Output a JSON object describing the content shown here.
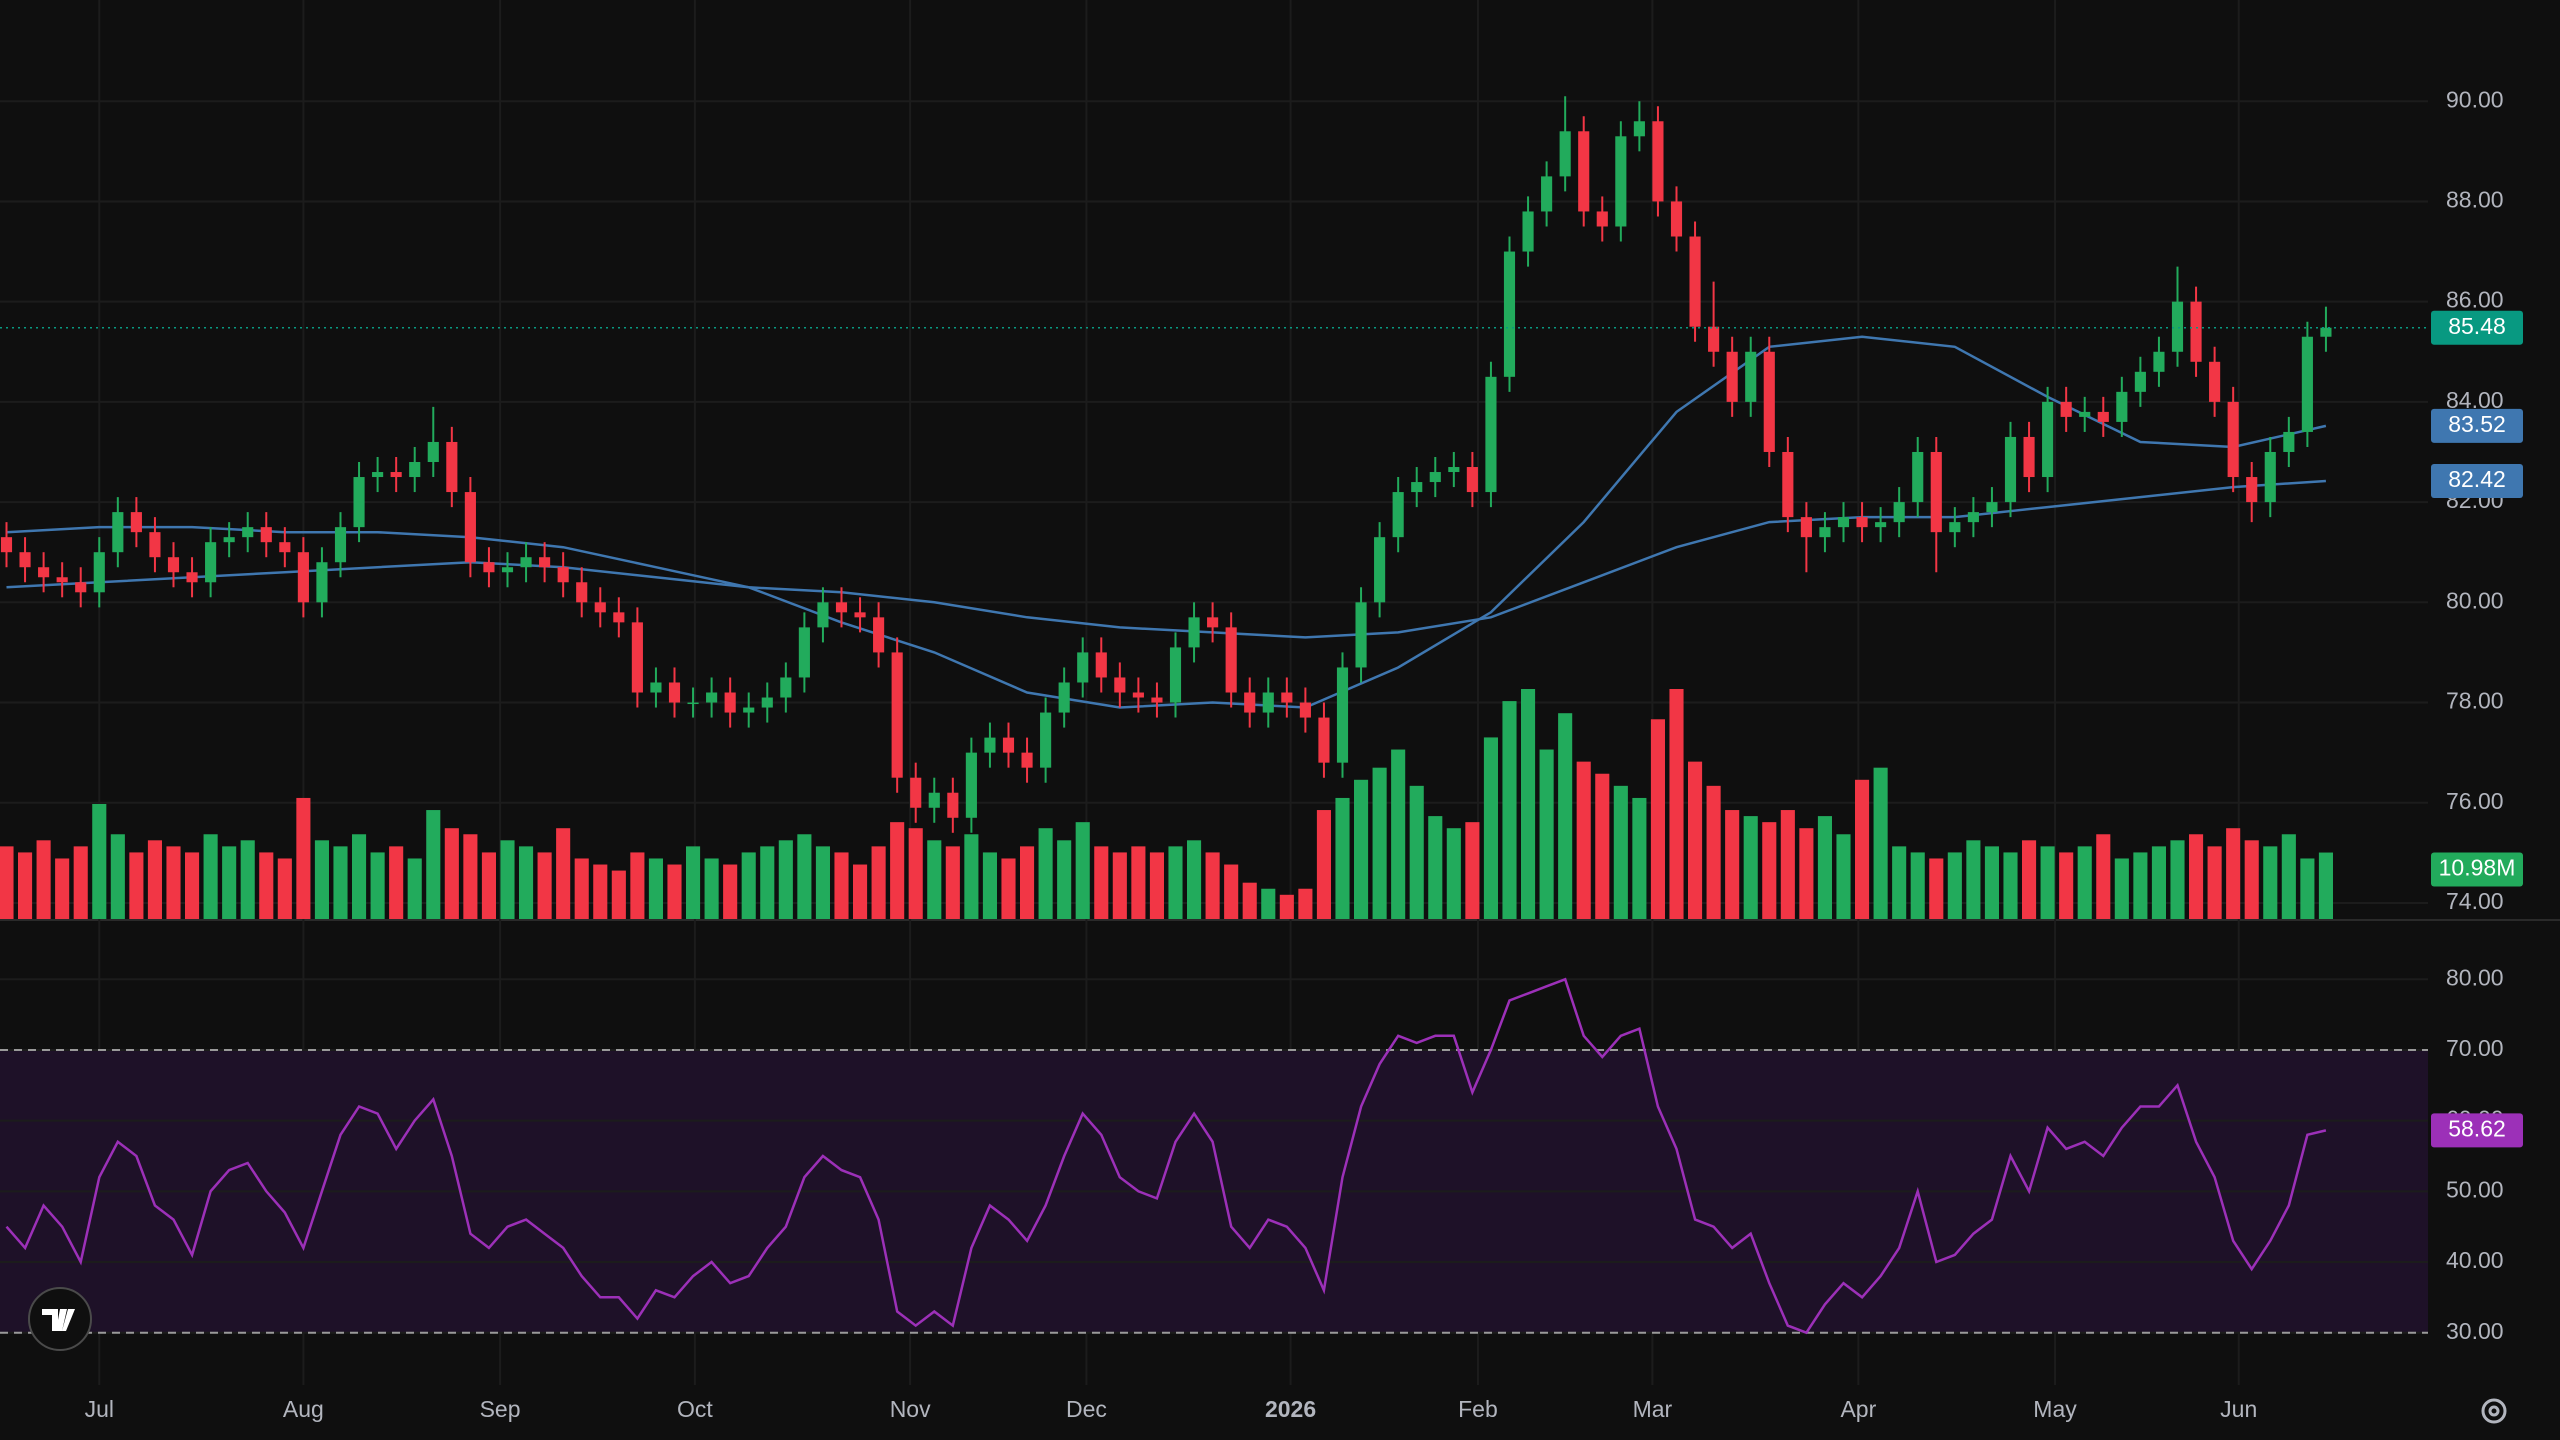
{
  "chart_data": [
    {
      "type": "candlestick",
      "xlim": [
        -0.35,
        130.5
      ],
      "xticks": [
        {
          "value": 5.0,
          "label": "Jul"
        },
        {
          "value": 16.0,
          "label": "Aug"
        },
        {
          "value": 26.6,
          "label": "Sep"
        },
        {
          "value": 37.1,
          "label": "Oct"
        },
        {
          "value": 48.7,
          "label": "Nov"
        },
        {
          "value": 58.2,
          "label": "Dec"
        },
        {
          "value": 69.2,
          "label": "2026"
        },
        {
          "value": 79.3,
          "label": "Feb"
        },
        {
          "value": 88.7,
          "label": "Mar"
        },
        {
          "value": 99.8,
          "label": "Apr"
        },
        {
          "value": 110.4,
          "label": "May"
        },
        {
          "value": 120.3,
          "label": "Jun"
        }
      ],
      "ylim": [
        73.68,
        92.02
      ],
      "yticks": [
        {
          "value": 74,
          "label": "74.00"
        },
        {
          "value": 76,
          "label": "76.00"
        },
        {
          "value": 78,
          "label": "78.00"
        },
        {
          "value": 80,
          "label": "80.00"
        },
        {
          "value": 82,
          "label": "82.00"
        },
        {
          "value": 84,
          "label": "84.00"
        },
        {
          "value": 86,
          "label": "86.00"
        },
        {
          "value": 88,
          "label": "88.00"
        },
        {
          "value": 90,
          "label": "90.00"
        }
      ],
      "grid": true,
      "up_color": "#22ab5c",
      "down_color": "#f23645",
      "last_price_color": "#089981",
      "open": [
        81.3,
        81.0,
        80.7,
        80.5,
        80.4,
        80.2,
        81.0,
        81.8,
        81.4,
        80.9,
        80.6,
        80.4,
        81.2,
        81.3,
        81.5,
        81.2,
        81.0,
        80.0,
        80.8,
        81.5,
        82.5,
        82.6,
        82.5,
        82.8,
        83.2,
        82.2,
        80.8,
        80.6,
        80.7,
        80.9,
        80.7,
        80.4,
        80.0,
        79.8,
        79.6,
        78.2,
        78.4,
        78.0,
        78.0,
        78.2,
        77.8,
        77.9,
        78.1,
        78.5,
        79.5,
        80.0,
        79.8,
        79.7,
        79.0,
        76.5,
        75.9,
        76.2,
        75.7,
        77.0,
        77.3,
        77.0,
        76.7,
        77.8,
        78.4,
        79.0,
        78.5,
        78.2,
        78.1,
        78.0,
        79.1,
        79.7,
        79.5,
        78.2,
        77.8,
        78.2,
        78.0,
        77.7,
        76.8,
        78.7,
        80.0,
        81.3,
        82.2,
        82.4,
        82.6,
        82.7,
        82.2,
        84.5,
        87.0,
        87.8,
        88.5,
        89.4,
        87.8,
        87.5,
        89.3,
        89.6,
        88.0,
        87.3,
        85.5,
        85.0,
        84.0,
        85.0,
        83.0,
        81.7,
        81.3,
        81.5,
        81.7,
        81.5,
        81.6,
        82.0,
        83.0,
        81.4,
        81.6,
        81.8,
        82.0,
        83.3,
        82.5,
        84.0,
        83.7,
        83.8,
        83.6,
        84.2,
        84.6,
        85.0,
        86.0,
        84.8,
        84.0,
        82.5,
        82.0,
        83.0,
        83.4,
        85.3
      ],
      "high": [
        81.6,
        81.3,
        81.0,
        80.8,
        80.7,
        81.3,
        82.1,
        82.1,
        81.7,
        81.2,
        80.9,
        81.5,
        81.6,
        81.8,
        81.8,
        81.5,
        81.3,
        81.1,
        81.8,
        82.8,
        82.9,
        82.9,
        83.1,
        83.9,
        83.5,
        82.5,
        81.1,
        81.0,
        81.2,
        81.2,
        81.0,
        80.7,
        80.3,
        80.1,
        79.9,
        78.7,
        78.7,
        78.3,
        78.5,
        78.5,
        78.2,
        78.4,
        78.8,
        79.8,
        80.3,
        80.3,
        80.1,
        80.0,
        79.3,
        76.8,
        76.5,
        76.5,
        77.3,
        77.6,
        77.6,
        77.3,
        78.1,
        78.7,
        79.3,
        79.3,
        78.8,
        78.5,
        78.4,
        79.4,
        80.0,
        80.0,
        79.8,
        78.5,
        78.5,
        78.5,
        78.3,
        78.0,
        79.0,
        80.3,
        81.6,
        82.5,
        82.7,
        82.9,
        83.0,
        83.0,
        84.8,
        87.3,
        88.1,
        88.8,
        90.1,
        89.7,
        88.1,
        89.6,
        90.0,
        89.9,
        88.3,
        87.6,
        86.4,
        85.3,
        85.3,
        85.3,
        83.3,
        82.0,
        81.8,
        82.0,
        82.0,
        81.9,
        82.3,
        83.3,
        83.3,
        81.9,
        82.1,
        82.3,
        83.6,
        83.6,
        84.3,
        84.3,
        84.1,
        84.1,
        84.5,
        84.9,
        85.3,
        86.7,
        86.3,
        85.1,
        84.3,
        82.8,
        83.3,
        83.7,
        85.6,
        85.9
      ],
      "low": [
        80.7,
        80.4,
        80.2,
        80.1,
        79.9,
        79.9,
        80.7,
        81.1,
        80.6,
        80.3,
        80.1,
        80.1,
        80.9,
        81.0,
        80.9,
        80.7,
        79.7,
        79.7,
        80.5,
        81.2,
        82.2,
        82.2,
        82.2,
        82.5,
        81.9,
        80.5,
        80.3,
        80.3,
        80.4,
        80.4,
        80.1,
        79.7,
        79.5,
        79.3,
        77.9,
        77.9,
        77.7,
        77.7,
        77.7,
        77.5,
        77.5,
        77.6,
        77.8,
        78.2,
        79.2,
        79.5,
        79.4,
        78.7,
        76.2,
        75.6,
        75.6,
        75.4,
        75.4,
        76.7,
        76.7,
        76.4,
        76.4,
        77.5,
        78.1,
        78.2,
        77.9,
        77.8,
        77.7,
        77.7,
        78.8,
        79.2,
        77.9,
        77.5,
        77.5,
        77.7,
        77.4,
        76.5,
        76.5,
        78.4,
        79.7,
        81.0,
        81.9,
        82.1,
        82.3,
        81.9,
        81.9,
        84.2,
        86.7,
        87.5,
        88.2,
        87.5,
        87.2,
        87.2,
        89.0,
        87.7,
        87.0,
        85.2,
        84.7,
        83.7,
        83.7,
        82.7,
        81.4,
        80.6,
        81.0,
        81.2,
        81.2,
        81.2,
        81.3,
        81.7,
        80.6,
        81.1,
        81.3,
        81.5,
        81.7,
        82.2,
        82.2,
        83.4,
        83.4,
        83.3,
        83.3,
        83.9,
        84.3,
        84.7,
        84.5,
        83.7,
        82.2,
        81.6,
        81.7,
        82.7,
        83.1,
        85.0
      ],
      "close": [
        81.0,
        80.7,
        80.5,
        80.4,
        80.2,
        81.0,
        81.8,
        81.4,
        80.9,
        80.6,
        80.4,
        81.2,
        81.3,
        81.5,
        81.2,
        81.0,
        80.0,
        80.8,
        81.5,
        82.5,
        82.6,
        82.5,
        82.8,
        83.2,
        82.2,
        80.8,
        80.6,
        80.7,
        80.9,
        80.7,
        80.4,
        80.0,
        79.8,
        79.6,
        78.2,
        78.4,
        78.0,
        78.0,
        78.2,
        77.8,
        77.9,
        78.1,
        78.5,
        79.5,
        80.0,
        79.8,
        79.7,
        79.0,
        76.5,
        75.9,
        76.2,
        75.7,
        77.0,
        77.3,
        77.0,
        76.7,
        77.8,
        78.4,
        79.0,
        78.5,
        78.2,
        78.1,
        78.0,
        79.1,
        79.7,
        79.5,
        78.2,
        77.8,
        78.2,
        78.0,
        77.7,
        76.8,
        78.7,
        80.0,
        81.3,
        82.2,
        82.4,
        82.6,
        82.7,
        82.2,
        84.5,
        87.0,
        87.8,
        88.5,
        89.4,
        87.8,
        87.5,
        89.3,
        89.6,
        88.0,
        87.3,
        85.5,
        85.0,
        84.0,
        85.0,
        83.0,
        81.7,
        81.3,
        81.5,
        81.7,
        81.5,
        81.6,
        82.0,
        83.0,
        81.4,
        81.6,
        81.8,
        82.0,
        83.3,
        82.5,
        84.0,
        83.7,
        83.8,
        83.6,
        84.2,
        84.6,
        85.0,
        86.0,
        84.8,
        84.0,
        82.5,
        82.0,
        83.0,
        83.4,
        85.3,
        85.48
      ],
      "lines": [
        {
          "color": "#3f77b0",
          "x": [
            0,
            5,
            10,
            15,
            20,
            25,
            30,
            35,
            40,
            45,
            50,
            55,
            60,
            65,
            70,
            75,
            80,
            85,
            90,
            95,
            100,
            105,
            110,
            115,
            120,
            125
          ],
          "values": [
            81.4,
            81.5,
            81.5,
            81.4,
            81.4,
            81.3,
            81.1,
            80.7,
            80.3,
            79.6,
            79.0,
            78.2,
            77.9,
            78.0,
            77.9,
            78.7,
            79.8,
            81.6,
            83.8,
            85.1,
            85.3,
            85.1,
            84.1,
            83.2,
            83.1,
            83.52
          ]
        },
        {
          "color": "#3f77b0",
          "x": [
            0,
            5,
            10,
            15,
            20,
            25,
            30,
            35,
            40,
            45,
            50,
            55,
            60,
            65,
            70,
            75,
            80,
            85,
            90,
            95,
            100,
            105,
            110,
            115,
            120,
            125
          ],
          "values": [
            80.3,
            80.4,
            80.5,
            80.6,
            80.7,
            80.8,
            80.7,
            80.5,
            80.3,
            80.2,
            80.0,
            79.7,
            79.5,
            79.4,
            79.3,
            79.4,
            79.7,
            80.4,
            81.1,
            81.6,
            81.7,
            81.7,
            81.9,
            82.1,
            82.3,
            82.42
          ]
        }
      ],
      "volume": {
        "last_label": "10.98M",
        "values": [
          12,
          11,
          13,
          10,
          12,
          19,
          14,
          11,
          13,
          12,
          11,
          14,
          12,
          13,
          11,
          10,
          20,
          13,
          12,
          14,
          11,
          12,
          10,
          18,
          15,
          14,
          11,
          13,
          12,
          11,
          15,
          10,
          9,
          8,
          11,
          10,
          9,
          12,
          10,
          9,
          11,
          12,
          13,
          14,
          12,
          11,
          9,
          12,
          16,
          15,
          13,
          12,
          14,
          11,
          10,
          12,
          15,
          13,
          16,
          12,
          11,
          12,
          11,
          12,
          13,
          11,
          9,
          6,
          5,
          4,
          5,
          18,
          20,
          23,
          25,
          28,
          22,
          17,
          15,
          16,
          30,
          36,
          38,
          28,
          34,
          26,
          24,
          22,
          20,
          33,
          38,
          26,
          22,
          18,
          17,
          16,
          18,
          15,
          17,
          14,
          23,
          25,
          12,
          11,
          10,
          11,
          13,
          12,
          11,
          13,
          12,
          11,
          12,
          14,
          10,
          11,
          12,
          13,
          14,
          12,
          15,
          13,
          12,
          14,
          10,
          10.98
        ]
      }
    },
    {
      "type": "rsi",
      "color": "#9c30b8",
      "band": [
        30,
        70
      ],
      "band_color": "#1e1128",
      "ylim": [
        22.6,
        88.1
      ],
      "yticks": [
        {
          "value": 30,
          "label": "30.00"
        },
        {
          "value": 40,
          "label": "40.00"
        },
        {
          "value": 50,
          "label": "50.00"
        },
        {
          "value": 60,
          "label": "60.00"
        },
        {
          "value": 70,
          "label": "70.00"
        },
        {
          "value": 80,
          "label": "80.00"
        }
      ],
      "values": [
        45,
        42,
        48,
        45,
        40,
        52,
        57,
        55,
        48,
        46,
        41,
        50,
        53,
        54,
        50,
        47,
        42,
        50,
        58,
        62,
        61,
        56,
        60,
        63,
        55,
        44,
        42,
        45,
        46,
        44,
        42,
        38,
        35,
        35,
        32,
        36,
        35,
        38,
        40,
        37,
        38,
        42,
        45,
        52,
        55,
        53,
        52,
        46,
        33,
        31,
        33,
        31,
        42,
        48,
        46,
        43,
        48,
        55,
        61,
        58,
        52,
        50,
        49,
        57,
        61,
        57,
        45,
        42,
        46,
        45,
        42,
        36,
        52,
        62,
        68,
        72,
        71,
        72,
        72,
        64,
        70,
        77,
        78,
        79,
        80,
        72,
        69,
        72,
        73,
        62,
        56,
        46,
        45,
        42,
        44,
        37,
        31,
        30,
        34,
        37,
        35,
        38,
        42,
        50,
        40,
        41,
        44,
        46,
        55,
        50,
        59,
        56,
        57,
        55,
        59,
        62,
        62,
        65,
        57,
        52,
        43,
        39,
        43,
        48,
        58,
        58.62
      ]
    }
  ]
}
